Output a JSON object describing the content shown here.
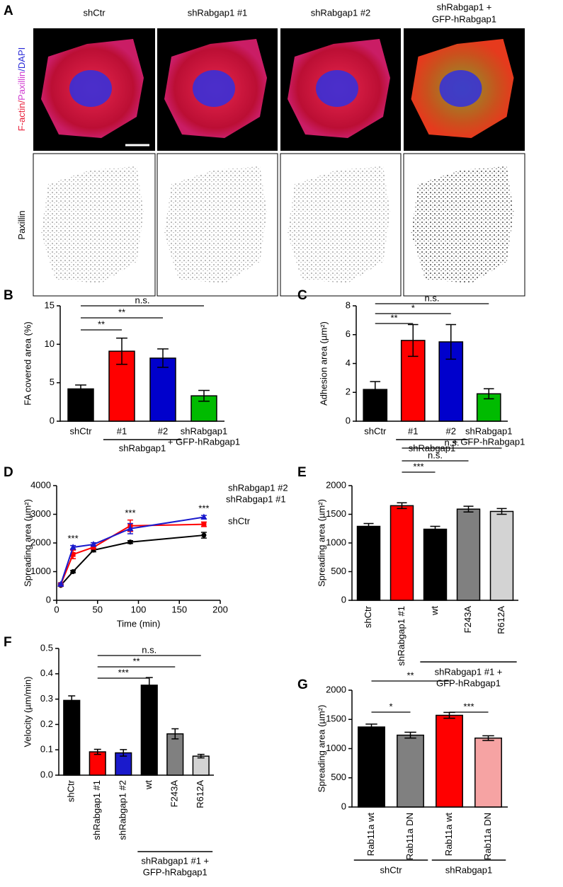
{
  "panel_a": {
    "letter": "A",
    "columns": [
      [
        "shCtr"
      ],
      [
        "shRabgap1 #1"
      ],
      [
        "shRabgap1 #2"
      ],
      [
        "shRabgap1 +",
        "GFP-hRabgap1"
      ]
    ],
    "row_labels": [
      [
        {
          "text": "F-actin/",
          "color": "#e8203a"
        },
        {
          "text": "Paxillin",
          "color": "#d03cd0"
        },
        {
          "text": "/DAPI",
          "color": "#2a2ad8"
        }
      ],
      [
        {
          "text": "Paxillin",
          "color": "#000000"
        }
      ]
    ]
  },
  "chart_data": [
    {
      "panel": "B",
      "type": "bar",
      "ylabel": "FA covered area (%)",
      "categories": [
        [
          "shCtr"
        ],
        [
          "#1"
        ],
        [
          "#2"
        ],
        [
          "shRabgap1",
          "+ GFP-hRabgap1"
        ]
      ],
      "values": [
        4.2,
        9.1,
        8.2,
        3.3
      ],
      "errors": [
        0.5,
        1.7,
        1.2,
        0.7
      ],
      "colors": [
        "#000000",
        "#ff0000",
        "#0000cc",
        "#00bb00"
      ],
      "ylim": [
        0,
        15
      ],
      "yticks": [
        0,
        5,
        10,
        15
      ],
      "groups": [
        {
          "label": [
            "shRabgap1"
          ],
          "from": 1,
          "to": 2
        }
      ],
      "comparisons": [
        {
          "from": 0,
          "to": 1,
          "label": "**"
        },
        {
          "from": 0,
          "to": 2,
          "label": "**"
        },
        {
          "from": 0,
          "to": 3,
          "label": "n.s."
        }
      ]
    },
    {
      "panel": "C",
      "type": "bar",
      "ylabel": "Adhesion area (µm²)",
      "categories": [
        [
          "shCtr"
        ],
        [
          "#1"
        ],
        [
          "#2"
        ],
        [
          "shRabgap1",
          "+ GFP-hRabgap1"
        ]
      ],
      "values": [
        2.2,
        5.6,
        5.5,
        1.9
      ],
      "errors": [
        0.55,
        1.1,
        1.2,
        0.35
      ],
      "colors": [
        "#000000",
        "#ff0000",
        "#0000cc",
        "#00bb00"
      ],
      "ylim": [
        0,
        8
      ],
      "yticks": [
        0,
        2,
        4,
        6,
        8
      ],
      "groups": [
        {
          "label": [
            "shRabgap1"
          ],
          "from": 1,
          "to": 2
        }
      ],
      "comparisons": [
        {
          "from": 0,
          "to": 1,
          "label": "**"
        },
        {
          "from": 0,
          "to": 2,
          "label": "*"
        },
        {
          "from": 0,
          "to": 3,
          "label": "n.s."
        }
      ]
    },
    {
      "panel": "D",
      "type": "line",
      "xlabel": "Time (min)",
      "ylabel": "Spreading area (µm²)",
      "x": [
        5,
        20,
        45,
        90,
        180
      ],
      "series": [
        {
          "name": "shCtr",
          "color": "#000000",
          "marker": "circle",
          "values": [
            520,
            1000,
            1750,
            2030,
            2270
          ],
          "errors": [
            30,
            40,
            60,
            50,
            100
          ]
        },
        {
          "name": "shRabgap1 #1",
          "color": "#ff0000",
          "marker": "square",
          "values": [
            550,
            1600,
            1850,
            2600,
            2650
          ],
          "errors": [
            40,
            150,
            60,
            200,
            80
          ]
        },
        {
          "name": "shRabgap1 #2",
          "color": "#1a1acc",
          "marker": "triangle",
          "values": [
            560,
            1850,
            1950,
            2500,
            2900
          ],
          "errors": [
            40,
            60,
            60,
            180,
            60
          ]
        }
      ],
      "xlim": [
        0,
        200
      ],
      "xticks": [
        0,
        50,
        100,
        150,
        200
      ],
      "ylim": [
        0,
        4000
      ],
      "yticks": [
        0,
        1000,
        2000,
        3000,
        4000
      ],
      "annotations": [
        {
          "x": 20,
          "label": "***"
        },
        {
          "x": 90,
          "label": "***"
        },
        {
          "x": 180,
          "label": "***"
        }
      ]
    },
    {
      "panel": "E",
      "type": "bar",
      "ylabel": "Spreading area (µm²)",
      "categories": [
        [
          "shCtr"
        ],
        [
          "shRabgap1 #1"
        ],
        [
          "wt"
        ],
        [
          "F243A"
        ],
        [
          "R612A"
        ]
      ],
      "values": [
        1290,
        1650,
        1240,
        1590,
        1550
      ],
      "errors": [
        50,
        50,
        50,
        50,
        50
      ],
      "colors": [
        "#000000",
        "#ff0000",
        "#000000",
        "#808080",
        "#d3d3d3"
      ],
      "ylim": [
        0,
        2000
      ],
      "yticks": [
        0,
        500,
        1000,
        1500,
        2000
      ],
      "groups": [
        {
          "label": [
            "shRabgap1 #1 +",
            "GFP-hRabgap1"
          ],
          "from": 2,
          "to": 4
        }
      ],
      "comparisons": [
        {
          "from": 1,
          "to": 2,
          "label": "***"
        },
        {
          "from": 1,
          "to": 3,
          "label": "n.s."
        },
        {
          "from": 1,
          "to": 4,
          "label": "n.s."
        }
      ]
    },
    {
      "panel": "F",
      "type": "bar",
      "ylabel": "Velocity (µm/min)",
      "categories": [
        [
          "shCtr"
        ],
        [
          "shRabgap1 #1"
        ],
        [
          "shRabgap1 #2"
        ],
        [
          "wt"
        ],
        [
          "F243A"
        ],
        [
          "R612A"
        ]
      ],
      "values": [
        0.295,
        0.092,
        0.088,
        0.355,
        0.163,
        0.075
      ],
      "errors": [
        0.018,
        0.01,
        0.013,
        0.03,
        0.02,
        0.007
      ],
      "colors": [
        "#000000",
        "#ff0000",
        "#1a1acc",
        "#000000",
        "#808080",
        "#d3d3d3"
      ],
      "ylim": [
        0,
        0.5
      ],
      "yticks": [
        {
          "value": 0,
          "label": "0.0"
        },
        0.1,
        0.2,
        0.3,
        0.4,
        0.5
      ],
      "groups": [
        {
          "label": [
            "shRabgap1 #1 +",
            "GFP-hRabgap1"
          ],
          "from": 3,
          "to": 5
        }
      ],
      "comparisons": [
        {
          "from": 1,
          "to": 3,
          "label": "***"
        },
        {
          "from": 1,
          "to": 4,
          "label": "**"
        },
        {
          "from": 1,
          "to": 5,
          "label": "n.s."
        }
      ]
    },
    {
      "panel": "G",
      "type": "bar",
      "ylabel": "Spreading area (µm²)",
      "categories": [
        [
          "Rab11a wt"
        ],
        [
          "Rab11a DN"
        ],
        [
          "Rab11a wt"
        ],
        [
          "Rab11a DN"
        ]
      ],
      "values": [
        1370,
        1230,
        1570,
        1180
      ],
      "errors": [
        50,
        50,
        50,
        40
      ],
      "colors": [
        "#000000",
        "#808080",
        "#ff0000",
        "#f6a3a3"
      ],
      "ylim": [
        0,
        2000
      ],
      "yticks": [
        0,
        500,
        1000,
        1500,
        2000
      ],
      "groups": [
        {
          "label": [
            "shCtr"
          ],
          "from": 0,
          "to": 1
        },
        {
          "label": [
            "shRabgap1"
          ],
          "from": 2,
          "to": 3
        }
      ],
      "comparisons": [
        {
          "from": 0,
          "to": 1,
          "label": "*"
        },
        {
          "from": 0,
          "to": 2,
          "label": "**"
        },
        {
          "from": 2,
          "to": 3,
          "label": "***"
        }
      ]
    }
  ]
}
